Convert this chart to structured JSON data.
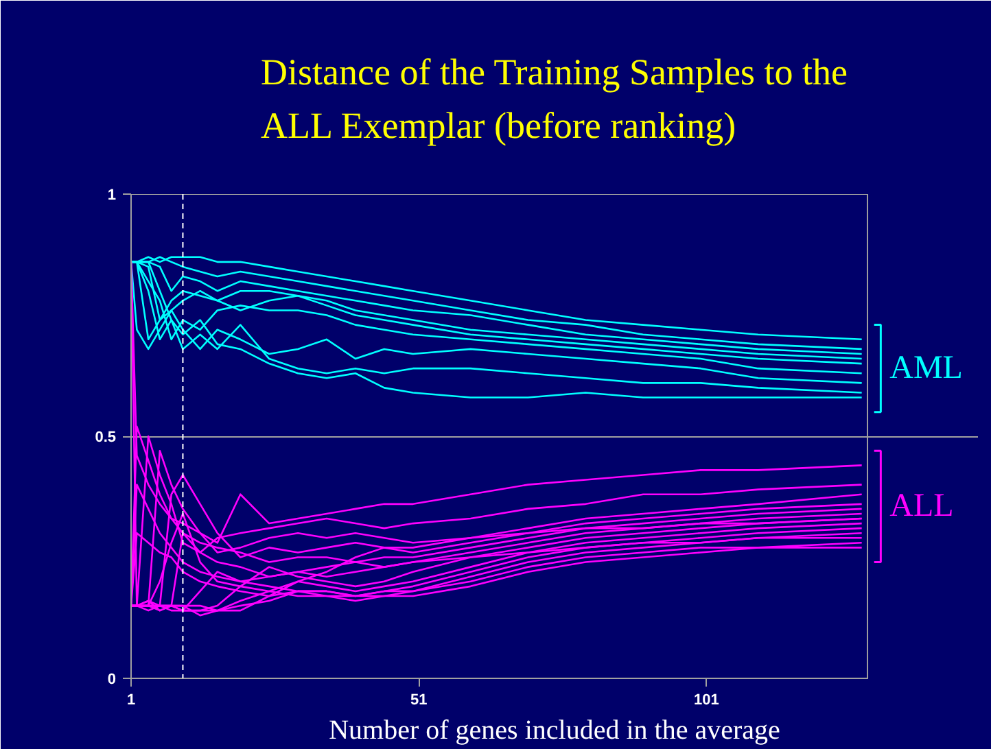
{
  "chart_data": {
    "type": "line",
    "title": "Distance of the Training Samples to the ALL Exemplar  (before ranking)",
    "xlabel": "Number of genes included in the average",
    "x": [
      1,
      2,
      4,
      6,
      8,
      10,
      13,
      16,
      20,
      25,
      30,
      35,
      40,
      45,
      50,
      60,
      70,
      80,
      90,
      100,
      110,
      128
    ],
    "xlim": [
      1,
      129
    ],
    "xticks": [
      1,
      51,
      101
    ],
    "ylim": [
      0,
      1
    ],
    "yticks": [
      0,
      0.5,
      1
    ],
    "grid": "y",
    "ref_lines": [
      {
        "axis": "x",
        "value": 10,
        "color": "#ffffff",
        "line_style": "dashed"
      }
    ],
    "series": [
      {
        "name": "AML",
        "color": "#00ffff",
        "values": [
          0.86,
          0.86,
          0.87,
          0.86,
          0.87,
          0.87,
          0.87,
          0.86,
          0.86,
          0.85,
          0.84,
          0.83,
          0.82,
          0.81,
          0.8,
          0.78,
          0.76,
          0.74,
          0.73,
          0.72,
          0.71,
          0.7
        ]
      },
      {
        "color": "#00ffff",
        "values": [
          0.86,
          0.86,
          0.86,
          0.87,
          0.86,
          0.85,
          0.84,
          0.83,
          0.84,
          0.83,
          0.82,
          0.81,
          0.8,
          0.79,
          0.78,
          0.76,
          0.74,
          0.73,
          0.71,
          0.7,
          0.69,
          0.68
        ]
      },
      {
        "color": "#00ffff",
        "values": [
          0.86,
          0.86,
          0.86,
          0.85,
          0.8,
          0.83,
          0.82,
          0.8,
          0.82,
          0.81,
          0.8,
          0.79,
          0.78,
          0.77,
          0.76,
          0.75,
          0.73,
          0.71,
          0.7,
          0.69,
          0.68,
          0.67
        ]
      },
      {
        "color": "#00ffff",
        "values": [
          0.86,
          0.86,
          0.85,
          0.74,
          0.78,
          0.8,
          0.79,
          0.78,
          0.8,
          0.8,
          0.79,
          0.78,
          0.76,
          0.75,
          0.74,
          0.72,
          0.71,
          0.7,
          0.69,
          0.68,
          0.67,
          0.66
        ]
      },
      {
        "color": "#00ffff",
        "values": [
          0.86,
          0.86,
          0.7,
          0.74,
          0.76,
          0.78,
          0.8,
          0.78,
          0.76,
          0.78,
          0.79,
          0.77,
          0.75,
          0.74,
          0.73,
          0.71,
          0.7,
          0.69,
          0.68,
          0.67,
          0.66,
          0.65
        ]
      },
      {
        "color": "#00ffff",
        "values": [
          0.86,
          0.86,
          0.82,
          0.78,
          0.7,
          0.74,
          0.72,
          0.76,
          0.77,
          0.76,
          0.76,
          0.75,
          0.73,
          0.72,
          0.71,
          0.7,
          0.69,
          0.68,
          0.67,
          0.66,
          0.64,
          0.63
        ]
      },
      {
        "color": "#00ffff",
        "values": [
          0.86,
          0.72,
          0.68,
          0.72,
          0.76,
          0.72,
          0.68,
          0.72,
          0.7,
          0.67,
          0.68,
          0.7,
          0.66,
          0.68,
          0.67,
          0.68,
          0.67,
          0.66,
          0.65,
          0.64,
          0.62,
          0.61
        ]
      },
      {
        "color": "#00ffff",
        "values": [
          0.86,
          0.86,
          0.8,
          0.7,
          0.74,
          0.68,
          0.71,
          0.68,
          0.73,
          0.66,
          0.64,
          0.63,
          0.64,
          0.63,
          0.64,
          0.64,
          0.63,
          0.62,
          0.61,
          0.61,
          0.6,
          0.59
        ]
      },
      {
        "color": "#00ffff",
        "values": [
          0.86,
          0.86,
          0.86,
          0.8,
          0.74,
          0.71,
          0.74,
          0.69,
          0.68,
          0.65,
          0.63,
          0.62,
          0.63,
          0.6,
          0.59,
          0.58,
          0.58,
          0.59,
          0.58,
          0.58,
          0.58,
          0.58
        ]
      },
      {
        "name": "ALL",
        "color": "#ff00ff",
        "values": [
          0.86,
          0.15,
          0.16,
          0.14,
          0.15,
          0.15,
          0.15,
          0.14,
          0.16,
          0.18,
          0.2,
          0.22,
          0.25,
          0.27,
          0.27,
          0.29,
          0.3,
          0.31,
          0.31,
          0.32,
          0.32,
          0.33
        ]
      },
      {
        "color": "#ff00ff",
        "values": [
          0.86,
          0.46,
          0.4,
          0.36,
          0.33,
          0.3,
          0.28,
          0.27,
          0.26,
          0.24,
          0.25,
          0.25,
          0.24,
          0.23,
          0.24,
          0.25,
          0.26,
          0.27,
          0.28,
          0.28,
          0.29,
          0.3
        ]
      },
      {
        "color": "#ff00ff",
        "values": [
          0.15,
          0.52,
          0.45,
          0.38,
          0.33,
          0.32,
          0.3,
          0.28,
          0.38,
          0.32,
          0.33,
          0.34,
          0.35,
          0.36,
          0.36,
          0.38,
          0.4,
          0.41,
          0.42,
          0.43,
          0.43,
          0.44
        ]
      },
      {
        "color": "#ff00ff",
        "values": [
          0.15,
          0.15,
          0.5,
          0.42,
          0.36,
          0.28,
          0.26,
          0.29,
          0.3,
          0.31,
          0.32,
          0.33,
          0.32,
          0.31,
          0.32,
          0.33,
          0.35,
          0.36,
          0.38,
          0.38,
          0.39,
          0.4
        ]
      },
      {
        "color": "#ff00ff",
        "values": [
          0.15,
          0.15,
          0.15,
          0.47,
          0.4,
          0.35,
          0.3,
          0.26,
          0.27,
          0.29,
          0.3,
          0.29,
          0.3,
          0.29,
          0.28,
          0.29,
          0.31,
          0.33,
          0.34,
          0.35,
          0.36,
          0.38
        ]
      },
      {
        "color": "#ff00ff",
        "values": [
          0.15,
          0.15,
          0.14,
          0.15,
          0.38,
          0.42,
          0.36,
          0.3,
          0.25,
          0.27,
          0.26,
          0.27,
          0.28,
          0.27,
          0.26,
          0.28,
          0.3,
          0.32,
          0.33,
          0.34,
          0.35,
          0.36
        ]
      },
      {
        "color": "#ff00ff",
        "values": [
          0.15,
          0.15,
          0.15,
          0.14,
          0.15,
          0.3,
          0.26,
          0.24,
          0.23,
          0.21,
          0.22,
          0.23,
          0.24,
          0.25,
          0.25,
          0.27,
          0.29,
          0.31,
          0.32,
          0.33,
          0.34,
          0.35
        ]
      },
      {
        "color": "#ff00ff",
        "values": [
          0.15,
          0.15,
          0.15,
          0.15,
          0.14,
          0.14,
          0.18,
          0.22,
          0.2,
          0.21,
          0.22,
          0.21,
          0.22,
          0.23,
          0.24,
          0.26,
          0.28,
          0.3,
          0.31,
          0.32,
          0.33,
          0.34
        ]
      },
      {
        "color": "#ff00ff",
        "values": [
          0.15,
          0.15,
          0.16,
          0.15,
          0.15,
          0.14,
          0.14,
          0.15,
          0.19,
          0.23,
          0.21,
          0.2,
          0.19,
          0.2,
          0.22,
          0.25,
          0.27,
          0.29,
          0.3,
          0.31,
          0.32,
          0.33
        ]
      },
      {
        "color": "#ff00ff",
        "values": [
          0.15,
          0.15,
          0.15,
          0.15,
          0.15,
          0.14,
          0.14,
          0.14,
          0.14,
          0.17,
          0.2,
          0.19,
          0.18,
          0.19,
          0.2,
          0.23,
          0.26,
          0.28,
          0.29,
          0.3,
          0.31,
          0.32
        ]
      },
      {
        "color": "#ff00ff",
        "values": [
          0.15,
          0.4,
          0.35,
          0.3,
          0.27,
          0.24,
          0.22,
          0.21,
          0.2,
          0.19,
          0.18,
          0.18,
          0.17,
          0.18,
          0.19,
          0.22,
          0.25,
          0.27,
          0.28,
          0.29,
          0.3,
          0.31
        ]
      },
      {
        "color": "#ff00ff",
        "values": [
          0.15,
          0.3,
          0.28,
          0.26,
          0.25,
          0.22,
          0.2,
          0.19,
          0.18,
          0.17,
          0.18,
          0.17,
          0.17,
          0.18,
          0.18,
          0.21,
          0.24,
          0.26,
          0.27,
          0.28,
          0.29,
          0.29
        ]
      },
      {
        "color": "#ff00ff",
        "values": [
          0.15,
          0.15,
          0.15,
          0.15,
          0.15,
          0.15,
          0.13,
          0.14,
          0.15,
          0.16,
          0.18,
          0.18,
          0.17,
          0.17,
          0.18,
          0.2,
          0.23,
          0.25,
          0.26,
          0.27,
          0.27,
          0.28
        ]
      },
      {
        "color": "#ff00ff",
        "values": [
          0.15,
          0.15,
          0.15,
          0.2,
          0.28,
          0.34,
          0.24,
          0.2,
          0.19,
          0.18,
          0.17,
          0.17,
          0.16,
          0.17,
          0.17,
          0.19,
          0.22,
          0.24,
          0.25,
          0.26,
          0.27,
          0.27
        ]
      }
    ]
  }
}
